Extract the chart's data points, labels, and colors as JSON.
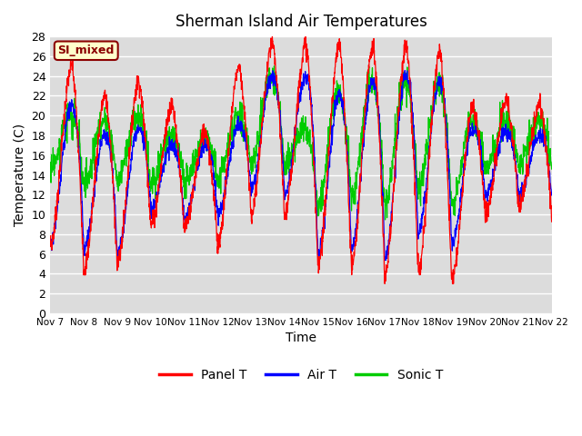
{
  "title": "Sherman Island Air Temperatures",
  "xlabel": "Time",
  "ylabel": "Temperature (C)",
  "ylim": [
    0,
    28
  ],
  "yticks": [
    0,
    2,
    4,
    6,
    8,
    10,
    12,
    14,
    16,
    18,
    20,
    22,
    24,
    26,
    28
  ],
  "x_tick_labels": [
    "Nov 7",
    "Nov 8",
    "Nov 9",
    "Nov 10",
    "Nov 11",
    "Nov 12",
    "Nov 13",
    "Nov 14",
    "Nov 15",
    "Nov 16",
    "Nov 17",
    "Nov 18",
    "Nov 19",
    "Nov 20",
    "Nov 21",
    "Nov 22"
  ],
  "background_color": "#dcdcdc",
  "figure_background": "#ffffff",
  "panel_color": "#ff0000",
  "air_color": "#0000ff",
  "sonic_color": "#00cc00",
  "si_mixed_bg": "#ffffcc",
  "si_mixed_border": "#8b0000",
  "si_mixed_text_color": "#8b0000",
  "legend_entries": [
    "Panel T",
    "Air T",
    "Sonic T"
  ]
}
